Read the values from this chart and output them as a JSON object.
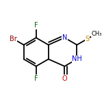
{
  "atom_color_C": "#000000",
  "atom_color_N": "#0000cc",
  "atom_color_O": "#cc0000",
  "atom_color_S": "#cc8800",
  "atom_color_F": "#006600",
  "atom_color_Br": "#8b0000",
  "bond_color": "#000000",
  "bond_width": 1.3,
  "dbo": 0.018,
  "font_size_atom": 7.0,
  "font_size_small": 6.0,
  "xlim": [
    0.05,
    0.98
  ],
  "ylim": [
    0.08,
    0.92
  ]
}
